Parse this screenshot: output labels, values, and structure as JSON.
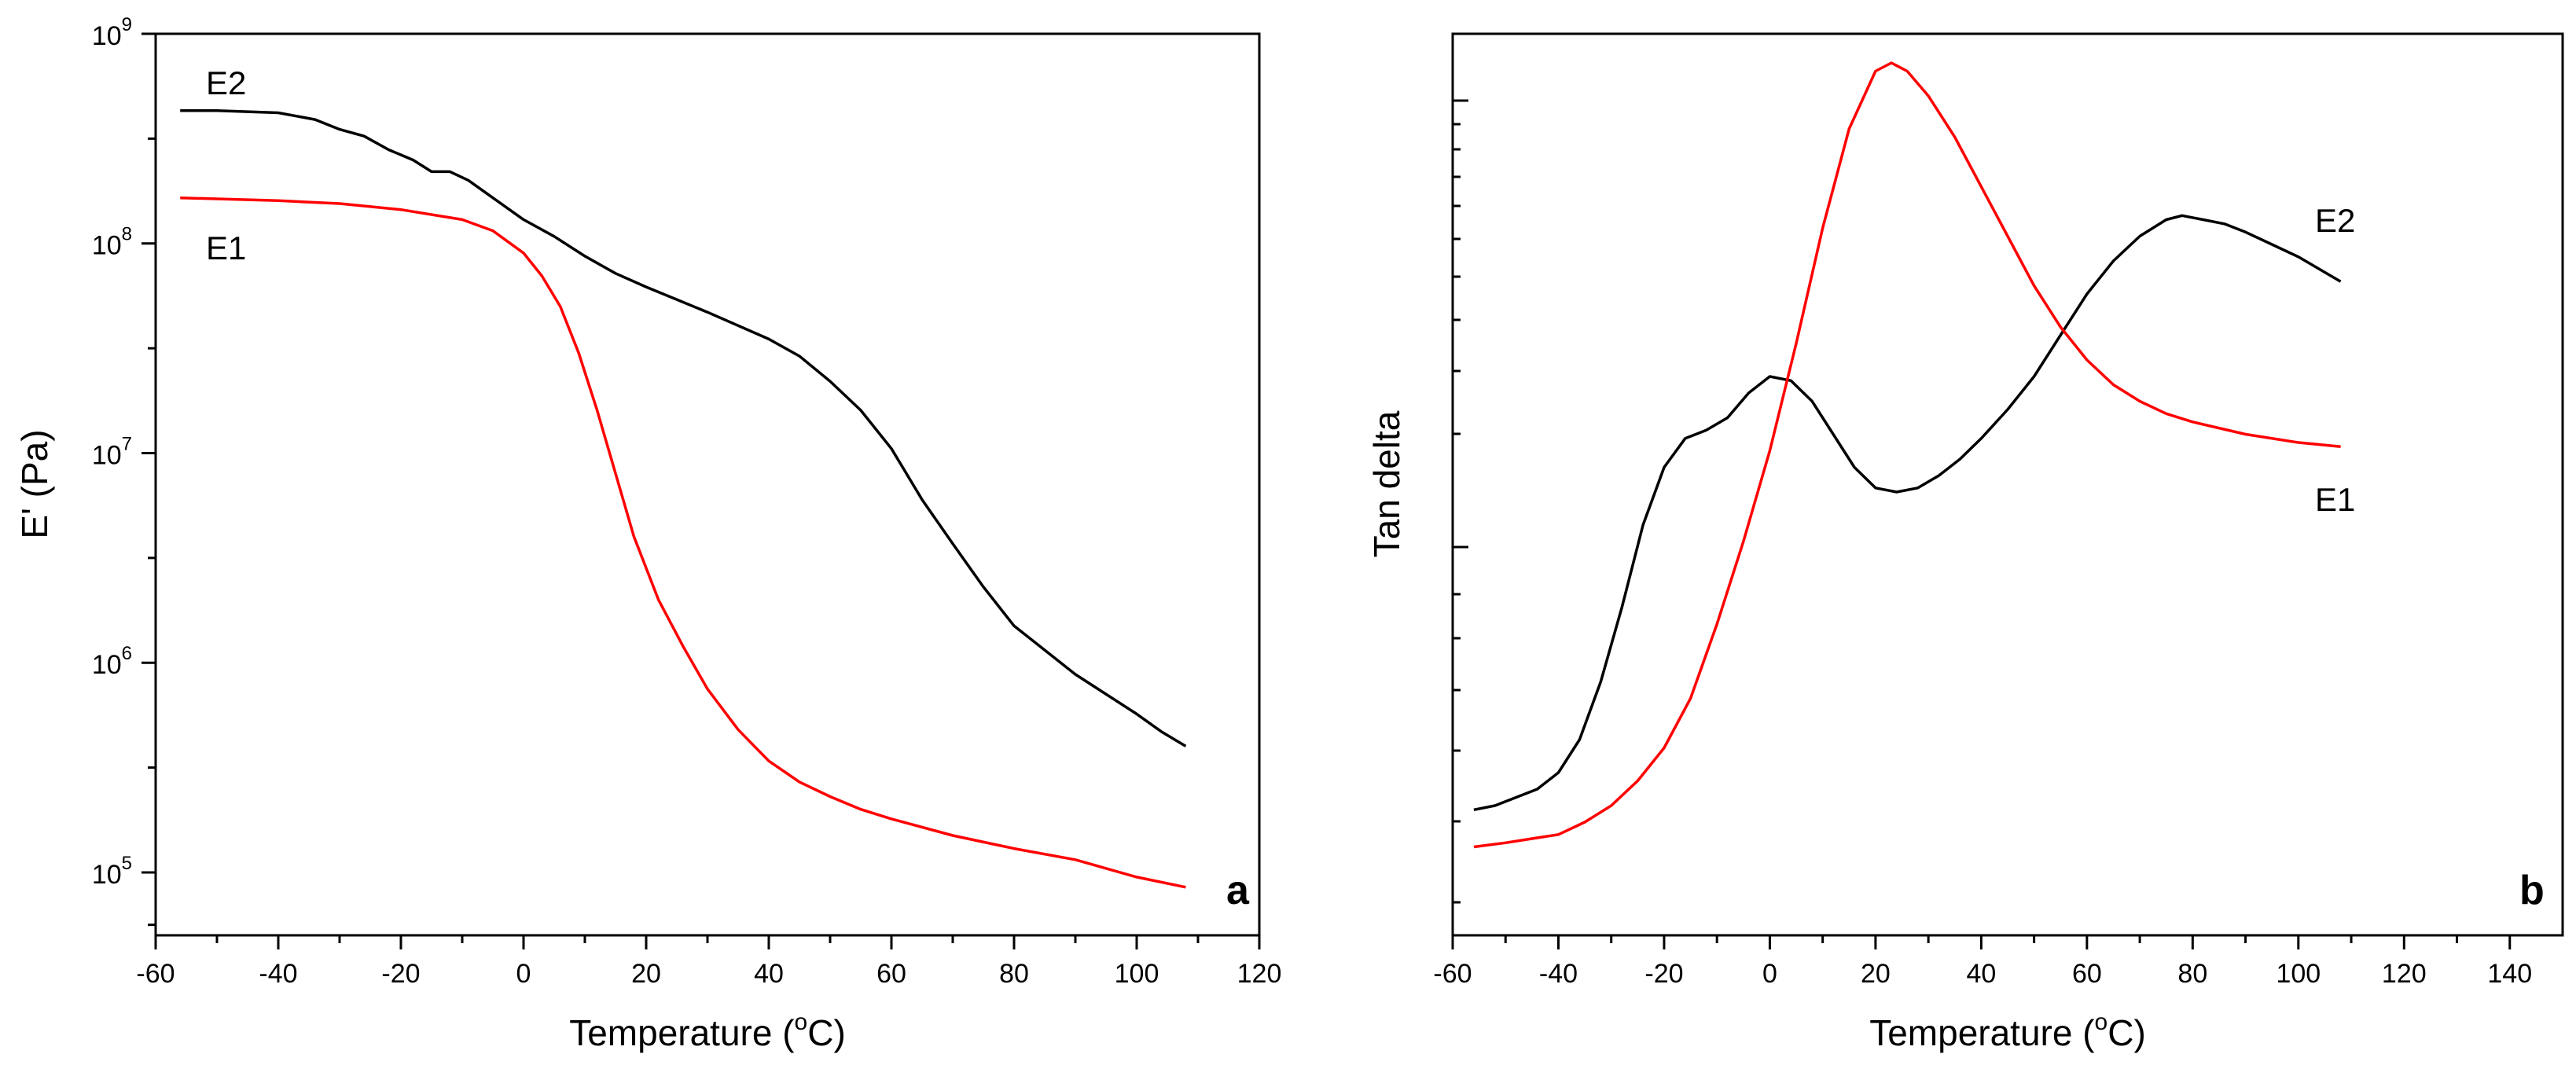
{
  "chart_data": [
    {
      "id": "a",
      "type": "line",
      "panel_label": "a",
      "title": "",
      "xlabel_prefix": "Temperature (",
      "xlabel_sup": "o",
      "xlabel_suffix": "C)",
      "ylabel": "E' (Pa)",
      "xlim": [
        -60,
        120
      ],
      "ylim_log10": [
        4.7,
        9.0
      ],
      "yscale": "log",
      "x_ticks": [
        -60,
        -40,
        -20,
        0,
        20,
        40,
        60,
        80,
        100,
        120
      ],
      "x_tick_labels": [
        "-60",
        "-40",
        "-20",
        "0",
        "20",
        "40",
        "60",
        "80",
        "100",
        "120"
      ],
      "y_ticks_log10": [
        5,
        6,
        7,
        8,
        9
      ],
      "y_tick_base": "10",
      "y_tick_exponents": [
        "5",
        "6",
        "7",
        "8",
        "9"
      ],
      "series": [
        {
          "name": "E2",
          "color": "#000000",
          "x": [
            -56,
            -50,
            -40,
            -34,
            -30,
            -26,
            -22,
            -18,
            -15,
            -12,
            -9,
            -5,
            0,
            5,
            10,
            15,
            20,
            30,
            40,
            45,
            50,
            55,
            60,
            65,
            70,
            75,
            80,
            90,
            100,
            104,
            108
          ],
          "y": [
            430000000.0,
            430000000.0,
            420000000.0,
            390000000.0,
            350000000.0,
            325000000.0,
            280000000.0,
            250000000.0,
            220000000.0,
            220000000.0,
            200000000.0,
            165000000.0,
            130000000.0,
            108000000.0,
            87000000.0,
            72000000.0,
            62000000.0,
            47000000.0,
            35000000.0,
            29000000.0,
            22000000.0,
            16000000.0,
            10500000.0,
            6000000.0,
            3700000.0,
            2300000.0,
            1500000.0,
            880000.0,
            570000.0,
            470000.0,
            400000.0
          ]
        },
        {
          "name": "E1",
          "color": "#ff0000",
          "x": [
            -56,
            -40,
            -30,
            -20,
            -10,
            -5,
            0,
            3,
            6,
            9,
            12,
            15,
            18,
            22,
            26,
            30,
            35,
            40,
            45,
            50,
            55,
            60,
            70,
            80,
            90,
            100,
            108
          ],
          "y": [
            165000000.0,
            160000000.0,
            155000000.0,
            145000000.0,
            130000000.0,
            115000000.0,
            90000000.0,
            70000000.0,
            50000000.0,
            30000000.0,
            16000000.0,
            8000000.0,
            4000000.0,
            2000000.0,
            1200000.0,
            750000.0,
            480000.0,
            340000.0,
            270000.0,
            230000.0,
            200000.0,
            180000.0,
            150000.0,
            130000.0,
            115000.0,
            95000.0,
            85000.0
          ]
        }
      ],
      "annotations": [
        "E2",
        "E1"
      ]
    },
    {
      "id": "b",
      "type": "line",
      "panel_label": "b",
      "title": "",
      "xlabel_prefix": "Temperature (",
      "xlabel_sup": "o",
      "xlabel_suffix": "C)",
      "ylabel": "Tan delta",
      "xlim": [
        -60,
        150
      ],
      "ylim": [
        0,
        1
      ],
      "y_tick_labels": "none",
      "x_ticks": [
        -60,
        -40,
        -20,
        0,
        20,
        40,
        60,
        80,
        100,
        120,
        140
      ],
      "x_tick_labels": [
        "-60",
        "-40",
        "-20",
        "0",
        "20",
        "40",
        "60",
        "80",
        "100",
        "120",
        "140"
      ],
      "series": [
        {
          "name": "E2",
          "color": "#000000",
          "x": [
            -56,
            -52,
            -48,
            -44,
            -40,
            -36,
            -32,
            -28,
            -24,
            -20,
            -16,
            -12,
            -8,
            -4,
            0,
            4,
            8,
            12,
            16,
            20,
            24,
            28,
            32,
            36,
            40,
            45,
            50,
            55,
            60,
            65,
            70,
            75,
            78,
            82,
            86,
            90,
            95,
            100,
            104,
            108
          ],
          "y": [
            0.095,
            0.1,
            0.11,
            0.12,
            0.14,
            0.18,
            0.25,
            0.34,
            0.44,
            0.51,
            0.545,
            0.555,
            0.57,
            0.6,
            0.62,
            0.615,
            0.59,
            0.55,
            0.51,
            0.485,
            0.48,
            0.485,
            0.5,
            0.52,
            0.545,
            0.58,
            0.62,
            0.67,
            0.72,
            0.76,
            0.79,
            0.81,
            0.815,
            0.81,
            0.805,
            0.795,
            0.78,
            0.765,
            0.75,
            0.735
          ]
        },
        {
          "name": "E1",
          "color": "#ff0000",
          "x": [
            -56,
            -50,
            -45,
            -40,
            -35,
            -30,
            -25,
            -20,
            -15,
            -10,
            -5,
            0,
            5,
            10,
            15,
            20,
            23,
            26,
            30,
            35,
            40,
            45,
            50,
            55,
            60,
            65,
            70,
            75,
            80,
            90,
            100,
            108
          ],
          "y": [
            0.05,
            0.055,
            0.06,
            0.065,
            0.08,
            0.1,
            0.13,
            0.17,
            0.23,
            0.32,
            0.42,
            0.53,
            0.66,
            0.8,
            0.92,
            0.99,
            1.0,
            0.99,
            0.96,
            0.91,
            0.85,
            0.79,
            0.73,
            0.68,
            0.64,
            0.61,
            0.59,
            0.575,
            0.565,
            0.55,
            0.54,
            0.535
          ]
        }
      ],
      "annotations": [
        "E2",
        "E1"
      ]
    }
  ]
}
